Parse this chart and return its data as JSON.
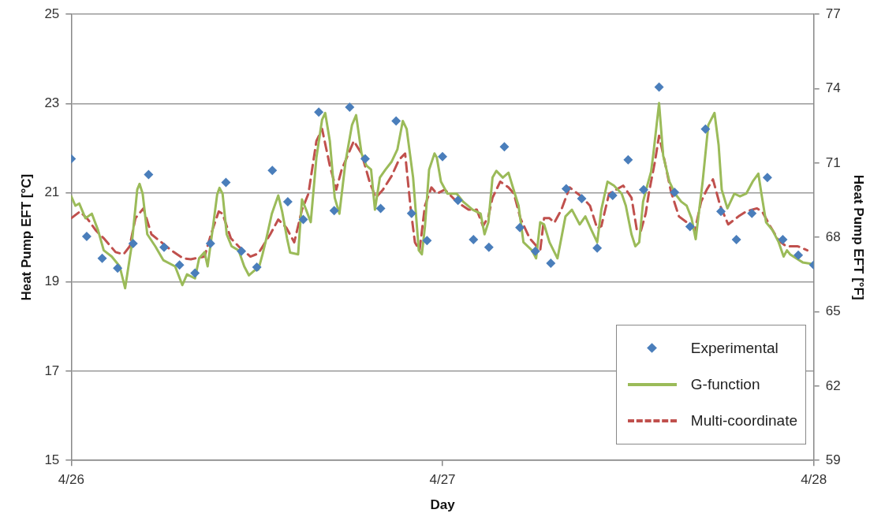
{
  "chart_data": {
    "type": "line",
    "xlabel": "Day",
    "ylabel": "Heat Pump EFT [°C]",
    "y2label": "Heat Pump EFT [°F]",
    "xlim": [
      "--04-26",
      "--04-28"
    ],
    "xticks": [
      {
        "value": "--04-26",
        "label": "4/26"
      },
      {
        "value": "--04-27",
        "label": "4/27"
      },
      {
        "value": "--04-28",
        "label": "4/28"
      }
    ],
    "ylim": [
      15,
      25
    ],
    "yticks": [
      15,
      17,
      19,
      21,
      23,
      25
    ],
    "y2lim": [
      59,
      77
    ],
    "y2ticks": [
      59,
      62,
      65,
      68,
      71,
      74,
      77
    ],
    "grid": "y",
    "legend": "bottom right",
    "series": [
      {
        "name": "Experimental",
        "type": "scatter",
        "marker": "diamond",
        "color": "#4a7ebb",
        "x": [
          "--04-26T00:00",
          "--04-26T01:00",
          "--04-26T02:00",
          "--04-26T03:00",
          "--04-26T04:00",
          "--04-26T05:00",
          "--04-26T06:00",
          "--04-26T07:00",
          "--04-26T08:00",
          "--04-26T09:00",
          "--04-26T10:00",
          "--04-26T11:00",
          "--04-26T12:00",
          "--04-26T13:00",
          "--04-26T14:00",
          "--04-26T15:00",
          "--04-26T16:00",
          "--04-26T17:00",
          "--04-26T18:00",
          "--04-26T19:00",
          "--04-26T20:00",
          "--04-26T21:00",
          "--04-26T22:00",
          "--04-26T23:00",
          "--04-27T00:00",
          "--04-27T01:00",
          "--04-27T02:00",
          "--04-27T03:00",
          "--04-27T04:00",
          "--04-27T05:00",
          "--04-27T06:00",
          "--04-27T07:00",
          "--04-27T08:00",
          "--04-27T09:00",
          "--04-27T10:00",
          "--04-27T11:00",
          "--04-27T12:00",
          "--04-27T13:00",
          "--04-27T14:00",
          "--04-27T15:00",
          "--04-27T16:00",
          "--04-27T17:00",
          "--04-27T18:00",
          "--04-27T19:00",
          "--04-27T20:00",
          "--04-27T21:00",
          "--04-27T22:00",
          "--04-27T23:00",
          "--04-28T00:00"
        ],
        "values": [
          21.76,
          20.02,
          19.53,
          19.31,
          19.86,
          21.41,
          19.78,
          19.38,
          19.2,
          19.86,
          21.23,
          19.69,
          19.33,
          21.5,
          20.8,
          20.4,
          22.81,
          20.6,
          22.92,
          21.76,
          20.65,
          22.61,
          20.54,
          19.93,
          21.81,
          20.83,
          19.95,
          19.78,
          22.03,
          20.22,
          19.69,
          19.42,
          21.09,
          20.87,
          19.76,
          20.94,
          21.74,
          21.07,
          23.37,
          21.01,
          20.24,
          22.43,
          20.58,
          19.95,
          20.54,
          21.34,
          19.95,
          19.6,
          19.38
        ]
      },
      {
        "name": "G-function",
        "marker": "none",
        "line_style": "solid",
        "color": "#9bbb59",
        "x": [
          "--04-26T00:00",
          "--04-26T00:16",
          "--04-26T00:31",
          "--04-26T00:55",
          "--04-26T01:20",
          "--04-26T01:44",
          "--04-26T02:06",
          "--04-26T02:37",
          "--04-26T03:08",
          "--04-26T03:29",
          "--04-26T03:54",
          "--04-26T04:16",
          "--04-26T04:25",
          "--04-26T04:37",
          "--04-26T04:55",
          "--04-26T05:26",
          "--04-26T05:57",
          "--04-26T06:43",
          "--04-26T07:11",
          "--04-26T07:29",
          "--04-26T08:00",
          "--04-26T08:16",
          "--04-26T08:37",
          "--04-26T08:49",
          "--04-26T09:08",
          "--04-26T09:26",
          "--04-26T09:35",
          "--04-26T09:47",
          "--04-26T10:03",
          "--04-26T10:22",
          "--04-26T10:49",
          "--04-26T11:11",
          "--04-26T11:29",
          "--04-26T11:51",
          "--04-26T12:06",
          "--04-26T12:22",
          "--04-26T12:37",
          "--04-26T12:58",
          "--04-26T13:23",
          "--04-26T13:38",
          "--04-26T13:57",
          "--04-26T14:09",
          "--04-26T14:40",
          "--04-26T14:55",
          "--04-26T15:11",
          "--04-26T15:29",
          "--04-26T15:51",
          "--04-26T16:13",
          "--04-26T16:25",
          "--04-26T16:43",
          "--04-26T17:02",
          "--04-26T17:20",
          "--04-26T17:44",
          "--04-26T18:09",
          "--04-26T18:25",
          "--04-26T18:46",
          "--04-26T19:05",
          "--04-26T19:23",
          "--04-26T19:38",
          "--04-26T19:57",
          "--04-26T20:19",
          "--04-26T20:43",
          "--04-26T21:05",
          "--04-26T21:26",
          "--04-26T21:41",
          "--04-26T22:06",
          "--04-26T22:28",
          "--04-26T22:40",
          "--04-26T22:52",
          "--04-26T23:08",
          "--04-26T23:29",
          "--04-26T23:38",
          "--04-26T23:54",
          "--04-27T00:19",
          "--04-27T00:55",
          "--04-27T01:20",
          "--04-27T01:57",
          "--04-27T02:28",
          "--04-27T02:43",
          "--04-27T02:58",
          "--04-27T03:14",
          "--04-27T03:29",
          "--04-27T03:54",
          "--04-27T04:16",
          "--04-27T04:31",
          "--04-27T04:55",
          "--04-27T05:14",
          "--04-27T05:47",
          "--04-27T06:03",
          "--04-27T06:19",
          "--04-27T06:34",
          "--04-27T06:55",
          "--04-27T07:26",
          "--04-27T07:57",
          "--04-27T08:22",
          "--04-27T08:52",
          "--04-27T09:14",
          "--04-27T09:38",
          "--04-27T10:00",
          "--04-27T10:16",
          "--04-27T10:40",
          "--04-27T11:05",
          "--04-27T11:35",
          "--04-27T11:51",
          "--04-27T12:13",
          "--04-27T12:28",
          "--04-27T12:43",
          "--04-27T12:58",
          "--04-27T13:14",
          "--04-27T13:29",
          "--04-27T13:38",
          "--04-27T14:00",
          "--04-27T14:16",
          "--04-27T14:40",
          "--04-27T15:02",
          "--04-27T15:26",
          "--04-27T15:47",
          "--04-27T16:06",
          "--04-27T16:22",
          "--04-27T16:49",
          "--04-27T17:11",
          "--04-27T17:35",
          "--04-27T17:51",
          "--04-27T18:03",
          "--04-27T18:25",
          "--04-27T18:52",
          "--04-27T19:14",
          "--04-27T19:38",
          "--04-27T20:03",
          "--04-27T20:25",
          "--04-27T20:37",
          "--04-27T20:55",
          "--04-27T21:20",
          "--04-27T21:44",
          "--04-27T22:03",
          "--04-27T22:16",
          "--04-27T22:28",
          "--04-27T22:52",
          "--04-27T23:17",
          "--04-28T00:00"
        ],
        "values": [
          20.92,
          20.71,
          20.76,
          20.43,
          20.53,
          20.16,
          19.71,
          19.57,
          19.35,
          18.86,
          19.8,
          21.07,
          21.2,
          20.98,
          20.07,
          19.8,
          19.49,
          19.35,
          18.93,
          19.17,
          19.08,
          19.53,
          19.67,
          19.35,
          20.16,
          20.96,
          21.11,
          20.98,
          20.07,
          19.8,
          19.71,
          19.35,
          19.15,
          19.26,
          19.28,
          19.62,
          19.98,
          20.53,
          20.94,
          20.58,
          19.98,
          19.66,
          19.62,
          20.85,
          20.62,
          20.34,
          21.79,
          22.64,
          22.79,
          22.16,
          20.89,
          20.53,
          21.7,
          22.52,
          22.74,
          21.88,
          21.61,
          21.52,
          20.62,
          21.34,
          21.52,
          21.7,
          21.97,
          22.61,
          22.43,
          21.34,
          19.71,
          19.62,
          20.25,
          21.52,
          21.88,
          21.79,
          21.25,
          20.98,
          20.98,
          20.8,
          20.62,
          20.53,
          20.07,
          20.34,
          21.34,
          21.49,
          21.34,
          21.45,
          21.16,
          20.71,
          19.89,
          19.71,
          19.53,
          20.34,
          20.29,
          19.89,
          19.53,
          20.47,
          20.62,
          20.29,
          20.47,
          20.16,
          19.89,
          20.62,
          21.25,
          21.16,
          20.98,
          20.71,
          20.07,
          19.8,
          19.89,
          20.8,
          21.16,
          21.47,
          21.88,
          23.01,
          21.83,
          21.25,
          20.98,
          20.8,
          20.71,
          20.43,
          19.96,
          21.25,
          22.52,
          22.79,
          22.07,
          21.07,
          20.65,
          20.98,
          20.92,
          20.98,
          21.25,
          21.43,
          20.98,
          20.34,
          20.16,
          19.89,
          19.57,
          19.71,
          19.62,
          19.53,
          19.44,
          19.4
        ]
      },
      {
        "name": "Multi-coordinate",
        "marker": "none",
        "line_style": "dashed",
        "color": "#c0504d",
        "x": [
          "--04-26T00:00",
          "--04-26T00:34",
          "--04-26T01:05",
          "--04-26T01:35",
          "--04-26T02:06",
          "--04-26T02:52",
          "--04-26T03:23",
          "--04-26T03:47",
          "--04-26T04:09",
          "--04-26T04:40",
          "--04-26T05:11",
          "--04-26T05:41",
          "--04-26T06:28",
          "--04-26T07:14",
          "--04-26T07:44",
          "--04-26T08:37",
          "--04-26T09:02",
          "--04-26T09:32",
          "--04-26T09:47",
          "--04-26T10:19",
          "--04-26T10:49",
          "--04-26T11:35",
          "--04-26T12:06",
          "--04-26T12:52",
          "--04-26T13:23",
          "--04-26T13:54",
          "--04-26T14:25",
          "--04-26T14:55",
          "--04-26T15:20",
          "--04-26T15:51",
          "--04-26T16:13",
          "--04-26T16:25",
          "--04-26T16:43",
          "--04-26T17:08",
          "--04-26T17:29",
          "--04-26T18:16",
          "--04-26T18:46",
          "--04-26T19:17",
          "--04-26T19:41",
          "--04-26T20:09",
          "--04-26T20:43",
          "--04-26T21:11",
          "--04-26T21:35",
          "--04-26T21:57",
          "--04-26T22:13",
          "--04-26T22:31",
          "--04-26T22:52",
          "--04-26T23:17",
          "--04-26T23:38",
          "--04-27T00:09",
          "--04-27T00:55",
          "--04-27T01:41",
          "--04-27T02:13",
          "--04-27T02:37",
          "--04-27T02:58",
          "--04-27T03:14",
          "--04-27T03:44",
          "--04-27T04:16",
          "--04-27T04:37",
          "--04-27T05:02",
          "--04-27T05:38",
          "--04-27T06:19",
          "--04-27T06:34",
          "--04-27T06:55",
          "--04-27T07:14",
          "--04-27T07:41",
          "--04-27T08:13",
          "--04-27T08:58",
          "--04-27T09:32",
          "--04-27T10:00",
          "--04-27T10:16",
          "--04-27T10:46",
          "--04-27T11:41",
          "--04-27T12:13",
          "--04-27T12:34",
          "--04-27T12:49",
          "--04-27T13:08",
          "--04-27T13:20",
          "--04-27T13:44",
          "--04-27T14:00",
          "--04-27T14:22",
          "--04-27T14:46",
          "--04-27T15:17",
          "--04-27T15:47",
          "--04-27T16:19",
          "--04-27T16:43",
          "--04-27T17:05",
          "--04-27T17:29",
          "--04-27T17:57",
          "--04-27T18:28",
          "--04-27T19:08",
          "--04-27T19:38",
          "--04-27T20:19",
          "--04-27T20:40",
          "--04-27T21:11",
          "--04-27T21:44",
          "--04-27T22:13",
          "--04-27T22:58",
          "--04-27T23:35"
        ],
        "values": [
          20.43,
          20.58,
          20.4,
          20.16,
          19.98,
          19.67,
          19.62,
          19.8,
          20.43,
          20.65,
          20.07,
          19.93,
          19.71,
          19.53,
          19.51,
          19.57,
          20.07,
          20.58,
          20.53,
          19.98,
          19.8,
          19.57,
          19.64,
          20.07,
          20.4,
          20.22,
          19.89,
          20.62,
          20.98,
          22.16,
          22.43,
          22.1,
          21.61,
          21.07,
          21.52,
          22.16,
          21.88,
          21.25,
          20.89,
          21.07,
          21.38,
          21.74,
          21.88,
          20.62,
          19.89,
          19.71,
          20.71,
          21.12,
          20.98,
          21.07,
          20.8,
          20.62,
          20.62,
          20.25,
          20.47,
          20.89,
          21.25,
          21.12,
          20.98,
          20.43,
          19.98,
          19.71,
          20.43,
          20.43,
          20.33,
          20.62,
          21.12,
          20.92,
          20.71,
          20.2,
          20.25,
          20.98,
          21.16,
          20.89,
          20.16,
          20.14,
          20.53,
          20.98,
          21.7,
          22.28,
          21.7,
          21.03,
          20.47,
          20.34,
          20.16,
          20.8,
          21.07,
          21.3,
          20.71,
          20.29,
          20.47,
          20.58,
          20.65,
          20.58,
          20.25,
          19.93,
          19.8,
          19.8,
          19.71
        ]
      }
    ]
  }
}
